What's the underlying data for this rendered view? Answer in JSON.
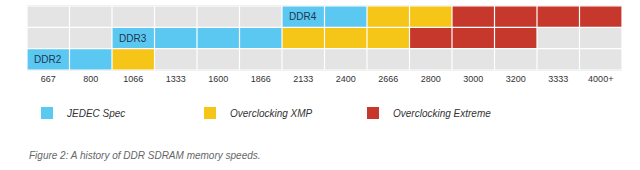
{
  "chart_data": {
    "type": "timeline",
    "orientation": "horizontal",
    "categories": [
      "667",
      "800",
      "1066",
      "1333",
      "1600",
      "1866",
      "2133",
      "2400",
      "2666",
      "2800",
      "3000",
      "3200",
      "3333",
      "4000+"
    ],
    "rows": [
      "DDR2",
      "DDR3",
      "DDR4"
    ],
    "series": [
      {
        "name": "JEDEC Spec",
        "color": "#5bc8f2",
        "segments": [
          {
            "row": "DDR2",
            "start": "667",
            "end": "800"
          },
          {
            "row": "DDR3",
            "start": "1066",
            "end": "1866"
          },
          {
            "row": "DDR4",
            "start": "2133",
            "end": "2400"
          }
        ]
      },
      {
        "name": "Overclocking XMP",
        "color": "#f5c518",
        "segments": [
          {
            "row": "DDR2",
            "start": "1066",
            "end": "1066"
          },
          {
            "row": "DDR3",
            "start": "2133",
            "end": "2666"
          },
          {
            "row": "DDR4",
            "start": "2666",
            "end": "2800"
          }
        ]
      },
      {
        "name": "Overclocking Extreme",
        "color": "#c6382c",
        "segments": [
          {
            "row": "DDR3",
            "start": "2800",
            "end": "3200"
          },
          {
            "row": "DDR4",
            "start": "3000",
            "end": "4000+"
          }
        ]
      }
    ],
    "caption": "Figure 2: A history of DDR SDRAM memory speeds.",
    "grid": true,
    "legend": "bottom",
    "tick_labels": "x"
  }
}
